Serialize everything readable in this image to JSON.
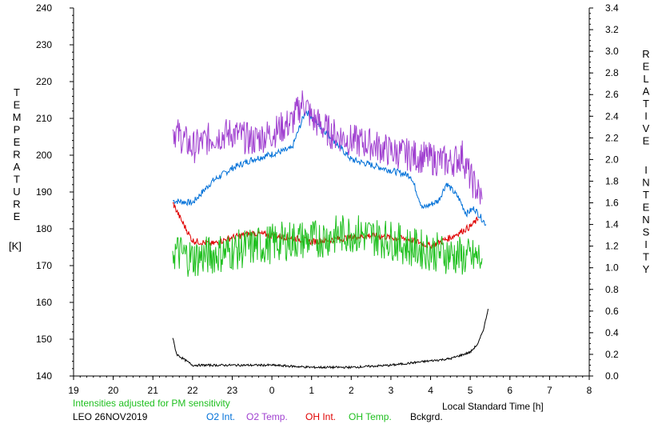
{
  "chart_data": {
    "type": "line",
    "xlabel": "Local Standard Time [h]",
    "x_ticks": [
      "19",
      "20",
      "21",
      "22",
      "23",
      "0",
      "1",
      "2",
      "3",
      "4",
      "5",
      "6",
      "7",
      "8"
    ],
    "xlim_hours_since_19": [
      0,
      13
    ],
    "ylabel_left": [
      "T",
      "E",
      "M",
      "P",
      "E",
      "R",
      "A",
      "T",
      "U",
      "R",
      "E"
    ],
    "ylabel_left_unit": "[K]",
    "ylim_left": [
      140,
      240
    ],
    "y_ticks_left": [
      "240",
      "230",
      "220",
      "210",
      "200",
      "190",
      "180",
      "170",
      "160",
      "150",
      "140"
    ],
    "ylabel_right_word1": [
      "R",
      "E",
      "L",
      "A",
      "T",
      "I",
      "V",
      "E"
    ],
    "ylabel_right_word2": [
      "I",
      "N",
      "T",
      "E",
      "N",
      "S",
      "I",
      "T",
      "Y"
    ],
    "ylim_right": [
      0.0,
      3.4
    ],
    "y_ticks_right": [
      "3.4",
      "3.2",
      "3.0",
      "2.8",
      "2.6",
      "2.4",
      "2.2",
      "2.0",
      "1.8",
      "1.6",
      "1.4",
      "1.2",
      "1.0",
      "0.8",
      "0.6",
      "0.4",
      "0.2",
      "0.0"
    ],
    "series": [
      {
        "name": "O2 Int.",
        "color": "#0070d8",
        "axis": "right",
        "noise": 0.03,
        "x": [
          21.5,
          22.0,
          22.5,
          23.0,
          23.5,
          24.0,
          24.5,
          24.85,
          25.5,
          26.0,
          26.5,
          27.0,
          27.5,
          27.8,
          28.2,
          28.4,
          28.7,
          28.9,
          29.1,
          29.4
        ],
        "y": [
          1.62,
          1.6,
          1.8,
          1.92,
          2.0,
          2.05,
          2.1,
          2.45,
          2.2,
          2.0,
          1.95,
          1.9,
          1.85,
          1.55,
          1.62,
          1.78,
          1.65,
          1.5,
          1.55,
          1.4
        ]
      },
      {
        "name": "O2 Temp.",
        "color": "#a040d0",
        "axis": "left",
        "noise": 4.5,
        "x": [
          21.5,
          22.0,
          22.5,
          23.0,
          23.5,
          24.0,
          24.5,
          24.8,
          25.0,
          25.5,
          26.0,
          26.5,
          27.0,
          27.5,
          28.0,
          28.5,
          28.8,
          29.0,
          29.3
        ],
        "y": [
          207,
          202,
          205,
          206,
          204,
          206,
          209,
          215,
          210,
          206,
          204,
          203,
          201,
          200,
          199,
          198,
          200,
          194,
          188
        ]
      },
      {
        "name": "OH Int.",
        "color": "#e00000",
        "axis": "right",
        "noise": 0.03,
        "x": [
          21.5,
          21.7,
          22.0,
          22.5,
          23.0,
          23.5,
          24.0,
          24.5,
          25.0,
          25.5,
          26.0,
          26.5,
          27.0,
          27.5,
          28.0,
          28.5,
          29.0,
          29.2
        ],
        "y": [
          1.6,
          1.45,
          1.25,
          1.22,
          1.28,
          1.32,
          1.3,
          1.28,
          1.24,
          1.26,
          1.28,
          1.3,
          1.28,
          1.26,
          1.2,
          1.28,
          1.38,
          1.45
        ]
      },
      {
        "name": "OH Temp.",
        "color": "#20c020",
        "axis": "left",
        "noise": 5.5,
        "x": [
          21.5,
          22.0,
          22.5,
          23.0,
          23.5,
          24.0,
          24.5,
          25.0,
          25.5,
          26.0,
          26.5,
          27.0,
          27.5,
          28.0,
          28.5,
          29.0,
          29.3
        ],
        "y": [
          174,
          172,
          173,
          174,
          175,
          176,
          177,
          177,
          178,
          179,
          178,
          177,
          175,
          174,
          173,
          172,
          172
        ]
      },
      {
        "name": "Bckgrd.",
        "color": "#000000",
        "axis": "right",
        "noise": 0.01,
        "x": [
          21.5,
          21.6,
          21.8,
          22.0,
          22.5,
          23.0,
          24.0,
          25.0,
          26.0,
          27.0,
          28.0,
          28.5,
          29.0,
          29.2,
          29.35,
          29.45
        ],
        "y": [
          0.35,
          0.2,
          0.15,
          0.1,
          0.1,
          0.1,
          0.1,
          0.08,
          0.08,
          0.1,
          0.14,
          0.16,
          0.22,
          0.3,
          0.45,
          0.62
        ]
      }
    ]
  },
  "annotation": {
    "text": "Intensities adjusted for PM sensitivity",
    "color": "#20c020"
  },
  "footer": {
    "station": "LEO 26NOV2019"
  },
  "legend": [
    {
      "label": "O2 Int.",
      "color": "#0070d8"
    },
    {
      "label": "O2 Temp.",
      "color": "#a040d0"
    },
    {
      "label": "OH Int.",
      "color": "#e00000"
    },
    {
      "label": "OH Temp.",
      "color": "#20c020"
    },
    {
      "label": "Bckgrd.",
      "color": "#000000"
    }
  ]
}
